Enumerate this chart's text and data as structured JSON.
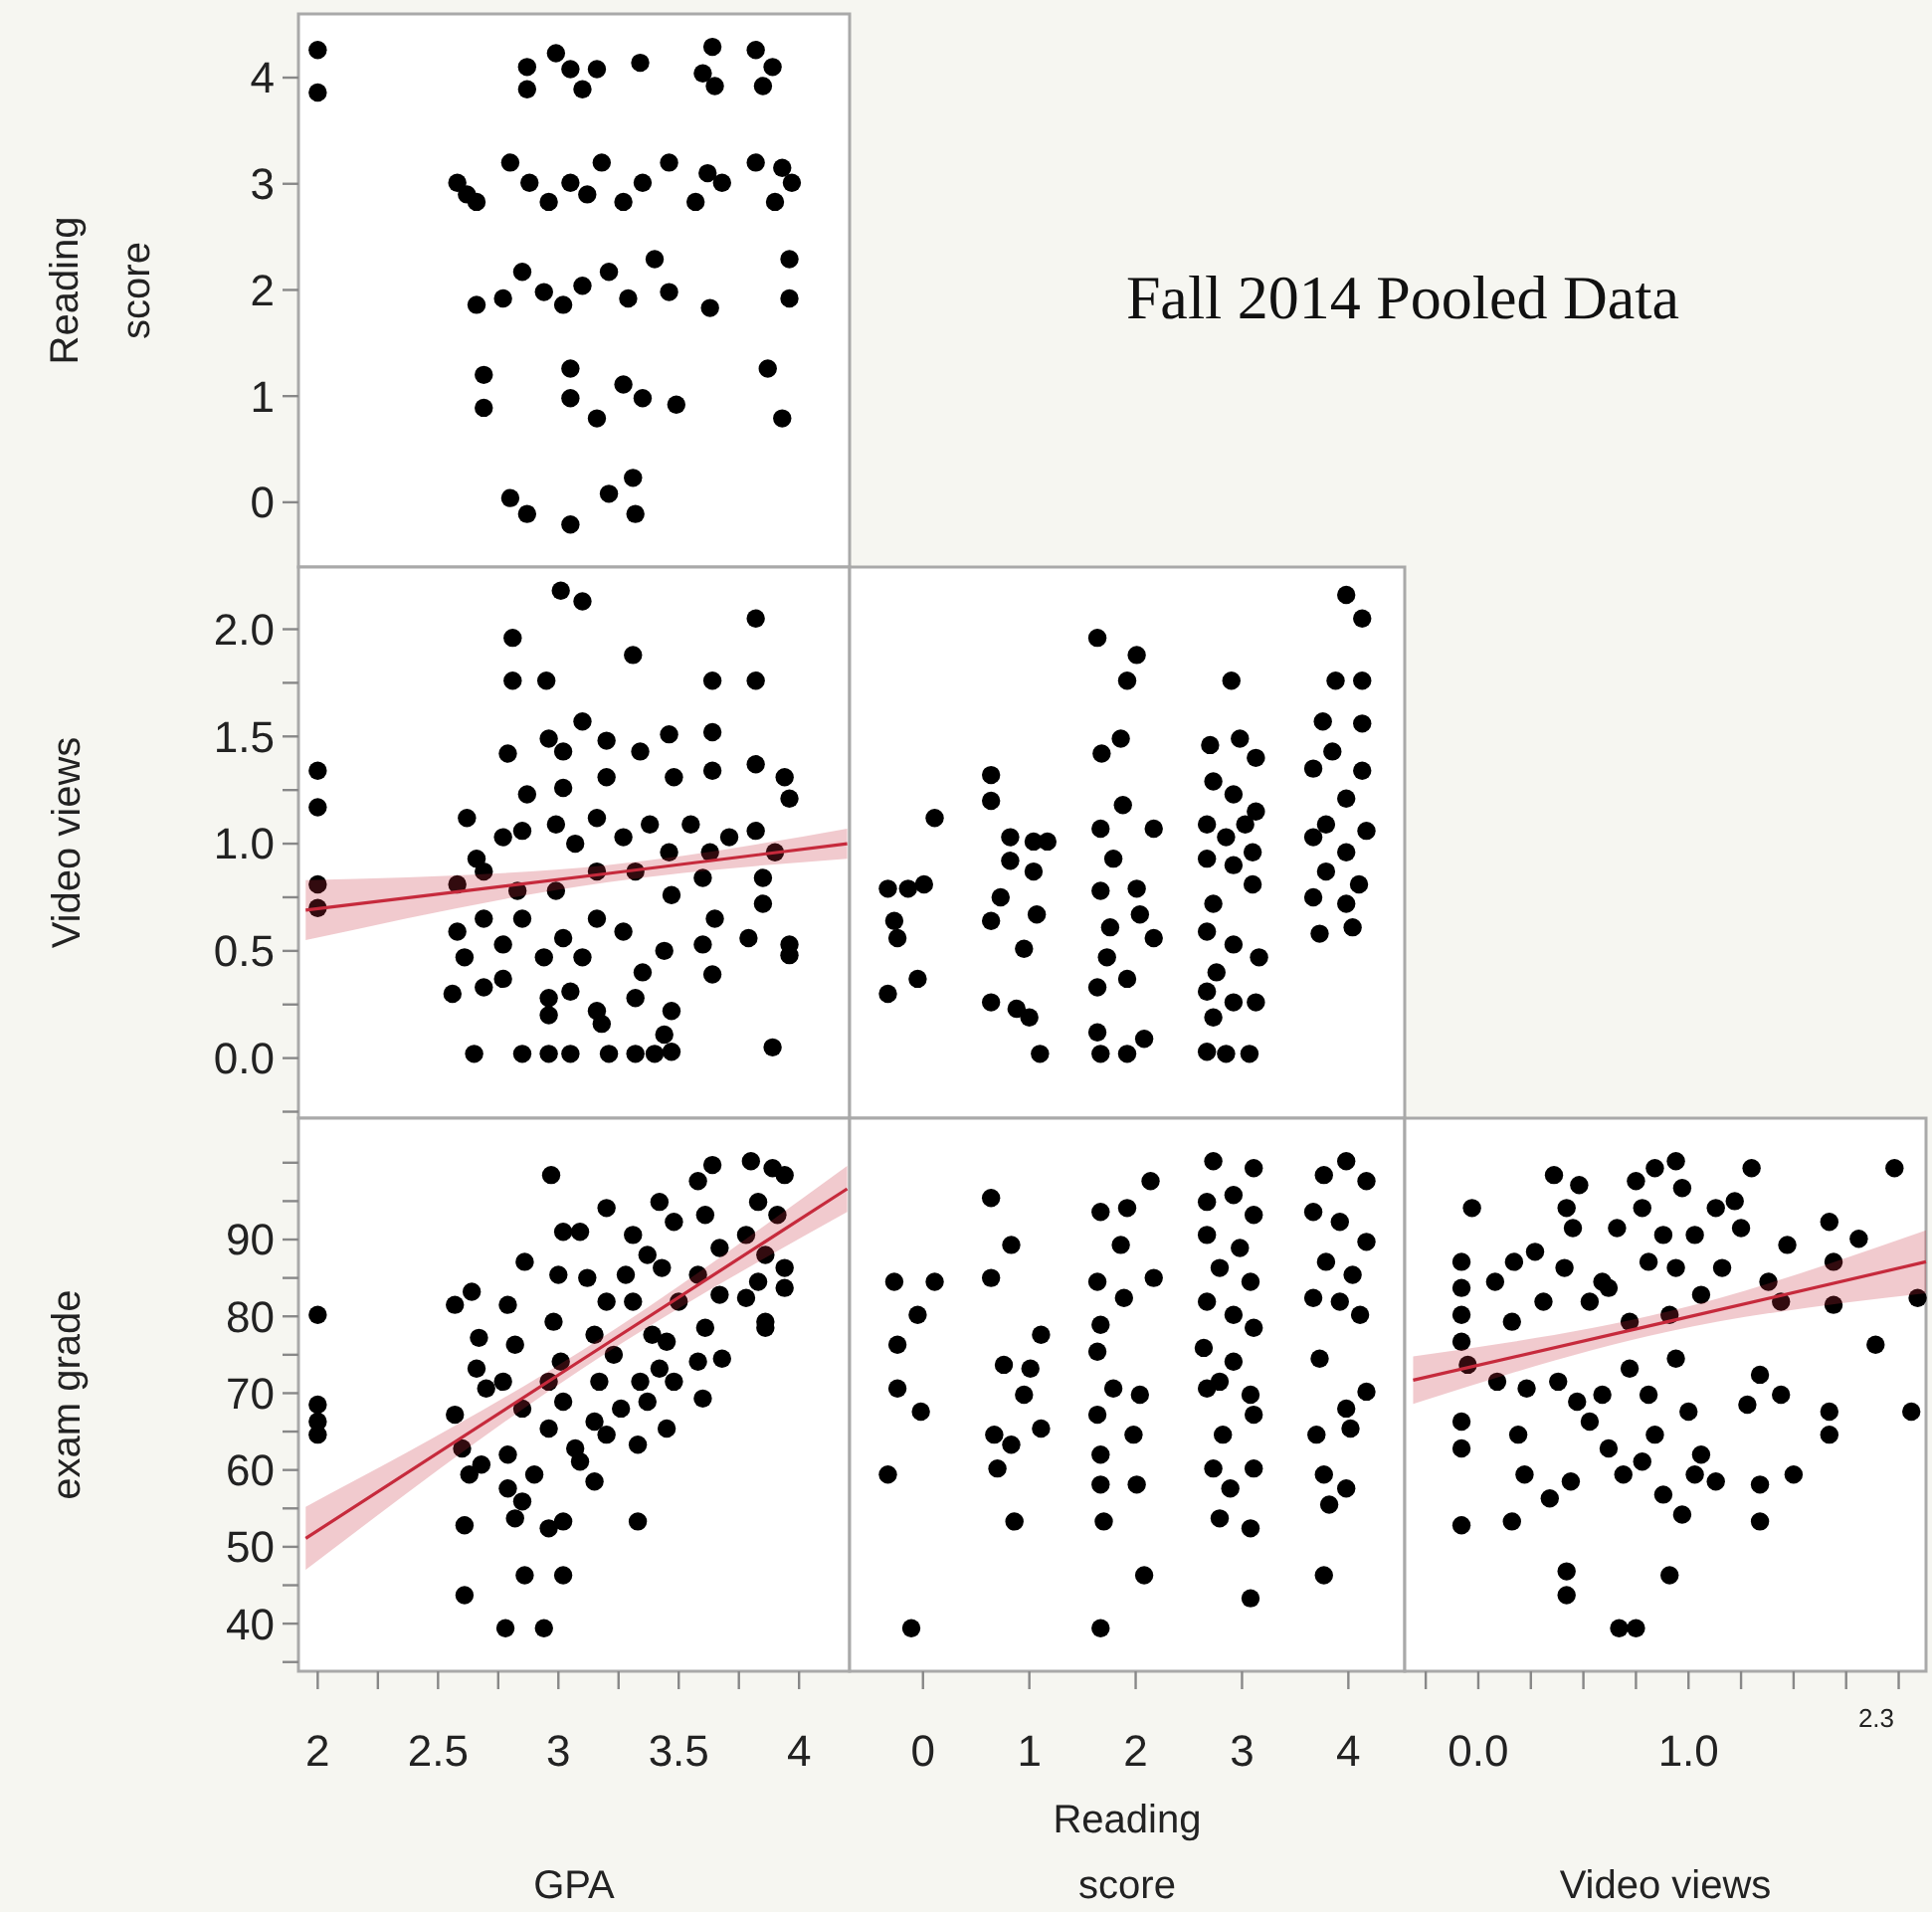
{
  "chart_data": [
    {
      "type": "scatter",
      "ylabel": "Reading score",
      "marker": "circle",
      "tick_labels": "y",
      "xlim": [
        1.92,
        4.21
      ],
      "ylim": [
        -0.61,
        4.6
      ],
      "yticks": [
        0,
        1,
        2,
        3,
        4
      ],
      "series": [
        {
          "color": "#000000",
          "x": [
            2.0,
            2.0,
            2.87,
            2.87,
            2.99,
            3.05,
            3.1,
            3.16,
            3.34,
            3.64,
            3.65,
            3.6,
            3.82,
            3.85,
            3.89,
            2.58,
            2.66,
            2.8,
            2.88,
            2.96,
            3.05,
            3.18,
            3.27,
            3.35,
            3.46,
            3.57,
            3.68,
            3.82,
            3.9,
            3.97,
            2.62,
            3.12,
            3.62,
            3.93,
            2.66,
            2.77,
            2.85,
            2.94,
            3.02,
            3.1,
            3.21,
            3.29,
            3.4,
            3.46,
            3.63,
            3.96,
            3.96,
            2.69,
            2.69,
            3.05,
            3.05,
            3.16,
            3.27,
            3.35,
            3.49,
            3.87,
            3.93,
            2.8,
            2.87,
            3.05,
            3.21,
            3.31,
            3.32
          ],
          "values": [
            4.26,
            3.86,
            4.1,
            3.89,
            4.23,
            4.08,
            3.89,
            4.08,
            4.14,
            4.29,
            3.92,
            4.04,
            4.26,
            3.92,
            4.1,
            3.01,
            2.83,
            3.2,
            3.01,
            2.83,
            3.01,
            3.2,
            2.83,
            3.01,
            3.2,
            2.83,
            3.01,
            3.2,
            2.83,
            3.01,
            2.9,
            2.9,
            3.1,
            3.15,
            1.86,
            1.92,
            2.17,
            1.98,
            1.86,
            2.04,
            2.17,
            1.92,
            2.29,
            1.98,
            1.83,
            2.29,
            1.92,
            1.2,
            0.89,
            1.26,
            0.98,
            0.79,
            1.11,
            0.98,
            0.92,
            1.26,
            0.79,
            0.04,
            -0.11,
            -0.21,
            0.08,
            0.23,
            -0.11
          ]
        }
      ]
    },
    {
      "type": "scatter",
      "ylabel": "Video views",
      "marker": "circle",
      "tick_labels": "y",
      "xlim": [
        1.92,
        4.21
      ],
      "ylim": [
        -0.28,
        2.29
      ],
      "yticks": [
        {
          "value": -0.25,
          "label": null
        },
        {
          "value": 0,
          "label": "0.0"
        },
        {
          "value": 0.25,
          "label": null
        },
        {
          "value": 0.5,
          "label": "0.5"
        },
        {
          "value": 0.75,
          "label": null
        },
        {
          "value": 1,
          "label": "1.0"
        },
        {
          "value": 1.25,
          "label": null
        },
        {
          "value": 1.5,
          "label": "1.5"
        },
        {
          "value": 1.75,
          "label": null
        },
        {
          "value": 2,
          "label": "2.0"
        }
      ],
      "series": [
        {
          "color": "#000000",
          "x": [
            2.0,
            2.0,
            2.0,
            2.0,
            3.01,
            3.1,
            2.81,
            2.81,
            2.95,
            3.31,
            3.82,
            3.64,
            3.82,
            2.79,
            2.96,
            3.1,
            3.02,
            3.2,
            3.34,
            3.46,
            3.64,
            3.64,
            3.48,
            3.2,
            3.02,
            2.87,
            3.82,
            3.94,
            2.62,
            2.66,
            2.58,
            2.77,
            2.85,
            2.99,
            3.07,
            3.16,
            3.27,
            3.38,
            3.46,
            3.55,
            3.63,
            3.71,
            3.82,
            3.9,
            3.96,
            3.85,
            3.6,
            3.32,
            3.16,
            2.99,
            2.83,
            2.69,
            3.47,
            2.58,
            2.61,
            2.69,
            2.77,
            2.85,
            2.94,
            3.02,
            3.1,
            3.16,
            3.27,
            3.35,
            3.44,
            3.6,
            3.65,
            3.85,
            3.96,
            3.79,
            3.64,
            3.96,
            2.56,
            2.69,
            2.77,
            2.96,
            2.96,
            3.05,
            3.16,
            3.18,
            3.32,
            3.47,
            3.44,
            2.65,
            2.85,
            2.96,
            3.05,
            3.21,
            3.32,
            3.4,
            3.47,
            3.89
          ],
          "values": [
            1.34,
            1.17,
            0.81,
            0.7,
            2.18,
            2.13,
            1.96,
            1.76,
            1.76,
            1.88,
            2.05,
            1.76,
            1.76,
            1.42,
            1.49,
            1.57,
            1.43,
            1.48,
            1.43,
            1.51,
            1.52,
            1.34,
            1.31,
            1.31,
            1.26,
            1.23,
            1.37,
            1.31,
            1.12,
            0.93,
            0.81,
            1.03,
            1.06,
            1.09,
            1.0,
            1.12,
            1.03,
            1.09,
            0.96,
            1.09,
            0.96,
            1.03,
            1.06,
            0.96,
            1.21,
            0.84,
            0.84,
            0.87,
            0.87,
            0.78,
            0.78,
            0.87,
            0.76,
            0.59,
            0.47,
            0.65,
            0.53,
            0.65,
            0.47,
            0.56,
            0.47,
            0.65,
            0.59,
            0.4,
            0.5,
            0.53,
            0.65,
            0.72,
            0.53,
            0.56,
            0.39,
            0.48,
            0.3,
            0.33,
            0.37,
            0.28,
            0.2,
            0.31,
            0.22,
            0.16,
            0.28,
            0.22,
            0.11,
            0.02,
            0.02,
            0.02,
            0.02,
            0.02,
            0.02,
            0.02,
            0.03,
            0.05
          ]
        },
        {
          "type": "line",
          "marker": "none",
          "color": "#c62a3c",
          "x": [
            1.95,
            3.2,
            4.2
          ],
          "values": [
            0.69,
            0.86,
            1.0
          ],
          "lower": [
            0.55,
            0.82,
            0.93
          ],
          "upper": [
            0.83,
            0.9,
            1.07
          ]
        }
      ]
    },
    {
      "type": "scatter",
      "marker": "circle",
      "tick_labels": false,
      "xlim": [
        -0.69,
        4.53
      ],
      "ylim": [
        -0.28,
        2.29
      ],
      "series": [
        {
          "color": "#000000",
          "x": [
            -0.33,
            -0.14,
            0.01,
            -0.27,
            -0.24,
            0.11,
            -0.05,
            -0.33,
            0.64,
            0.64,
            0.82,
            1.04,
            1.17,
            0.82,
            1.04,
            0.73,
            0.64,
            1.07,
            0.95,
            0.64,
            0.88,
            1.0,
            1.1,
            1.64,
            2.01,
            1.92,
            1.86,
            1.68,
            1.88,
            1.67,
            2.17,
            1.79,
            2.01,
            1.67,
            1.76,
            2.04,
            2.17,
            1.73,
            1.92,
            1.64,
            1.64,
            2.08,
            1.67,
            1.92,
            2.9,
            2.7,
            2.98,
            3.13,
            2.73,
            2.92,
            2.67,
            2.85,
            3.03,
            3.13,
            2.67,
            2.92,
            3.1,
            3.1,
            2.73,
            2.67,
            2.92,
            3.16,
            2.76,
            2.67,
            2.92,
            3.13,
            2.73,
            2.67,
            2.85,
            3.07,
            3.98,
            4.13,
            3.88,
            4.13,
            3.76,
            4.13,
            3.85,
            3.67,
            4.13,
            3.98,
            3.79,
            4.17,
            3.67,
            3.98,
            3.79,
            4.1,
            3.67,
            3.98,
            3.73,
            4.04
          ],
          "values": [
            0.79,
            0.79,
            0.81,
            0.64,
            0.56,
            1.12,
            0.37,
            0.3,
            1.32,
            1.2,
            1.03,
            1.01,
            1.01,
            0.92,
            0.87,
            0.75,
            0.64,
            0.67,
            0.51,
            0.26,
            0.23,
            0.19,
            0.02,
            1.96,
            1.88,
            1.76,
            1.49,
            1.42,
            1.18,
            1.07,
            1.07,
            0.93,
            0.79,
            0.78,
            0.61,
            0.67,
            0.56,
            0.47,
            0.37,
            0.33,
            0.12,
            0.09,
            0.02,
            0.02,
            1.76,
            1.46,
            1.49,
            1.4,
            1.29,
            1.23,
            1.09,
            1.03,
            1.09,
            1.15,
            0.93,
            0.9,
            0.96,
            0.81,
            0.72,
            0.59,
            0.53,
            0.47,
            0.4,
            0.31,
            0.26,
            0.26,
            0.19,
            0.03,
            0.02,
            0.02,
            2.16,
            2.05,
            1.76,
            1.76,
            1.57,
            1.56,
            1.43,
            1.35,
            1.34,
            1.21,
            1.09,
            1.06,
            1.03,
            0.96,
            0.87,
            0.81,
            0.75,
            0.72,
            0.58,
            0.61
          ]
        }
      ]
    },
    {
      "type": "scatter",
      "xlabel": "GPA",
      "ylabel": "exam grade",
      "marker": "circle",
      "xlim": [
        1.92,
        4.21
      ],
      "xticks": [
        2,
        {
          "value": 2.25,
          "label": null
        },
        2.5,
        {
          "value": 2.75,
          "label": null
        },
        3,
        {
          "value": 3.25,
          "label": null
        },
        3.5,
        {
          "value": 3.75,
          "label": null
        },
        4
      ],
      "ylim": [
        33.8,
        105.8
      ],
      "yticks": [
        {
          "value": 35,
          "label": null
        },
        40,
        {
          "value": 45,
          "label": null
        },
        50,
        {
          "value": 55,
          "label": null
        },
        60,
        {
          "value": 65,
          "label": null
        },
        70,
        {
          "value": 75,
          "label": null
        },
        80,
        {
          "value": 85,
          "label": null
        },
        90,
        {
          "value": 95,
          "label": null
        },
        {
          "value": 100,
          "label": null
        }
      ],
      "series": [
        {
          "color": "#000000",
          "x": [
            2.0,
            2.0,
            2.0,
            2.0,
            2.57,
            2.64,
            2.67,
            2.66,
            2.7,
            2.57,
            2.6,
            2.63,
            2.68,
            2.61,
            2.61,
            2.78,
            2.94,
            2.86,
            3.02,
            2.79,
            2.86,
            2.82,
            2.77,
            2.85,
            2.79,
            2.79,
            2.85,
            2.82,
            2.96,
            3.02,
            2.9,
            2.97,
            3.02,
            3.09,
            3.0,
            2.98,
            3.01,
            2.96,
            3.02,
            2.96,
            3.07,
            3.15,
            3.09,
            3.2,
            3.12,
            3.2,
            3.15,
            3.23,
            3.17,
            3.26,
            3.15,
            3.2,
            3.31,
            3.28,
            3.37,
            3.31,
            3.39,
            3.34,
            3.37,
            3.33,
            3.45,
            3.33,
            3.42,
            3.48,
            3.43,
            3.5,
            3.45,
            3.42,
            3.48,
            3.58,
            3.64,
            3.61,
            3.67,
            3.58,
            3.67,
            3.61,
            3.58,
            3.68,
            3.6,
            3.8,
            3.89,
            3.94,
            3.83,
            3.91,
            3.78,
            3.86,
            3.94,
            3.83,
            3.94,
            3.78,
            3.86,
            3.86
          ],
          "values": [
            80.2,
            68.5,
            66.3,
            64.6,
            81.5,
            83.2,
            77.2,
            73.2,
            70.6,
            67.2,
            62.8,
            59.4,
            60.7,
            52.8,
            43.7,
            39.4,
            39.4,
            46.3,
            46.3,
            81.5,
            87.1,
            76.3,
            71.5,
            68,
            62,
            57.6,
            55.9,
            53.7,
            52.4,
            53.3,
            59.4,
            98.4,
            91,
            91,
            85.4,
            79.3,
            74.1,
            71.5,
            68.9,
            65.4,
            62.8,
            58.5,
            61.1,
            94.1,
            85,
            81.9,
            77.6,
            75,
            71.5,
            68,
            66.3,
            64.6,
            90.6,
            85.4,
            88,
            81.9,
            77.6,
            71.5,
            68.9,
            63.3,
            65.4,
            53.3,
            94.9,
            92.3,
            86.3,
            81.9,
            76.7,
            73.2,
            71.5,
            97.6,
            99.7,
            93.2,
            88.9,
            85.4,
            82.8,
            78.5,
            74.1,
            74.5,
            69.3,
            100.2,
            99.3,
            98.4,
            94.9,
            93.2,
            90.6,
            88,
            86.3,
            84.5,
            83.7,
            82.4,
            79.3,
            78.5
          ]
        },
        {
          "type": "line",
          "marker": "none",
          "color": "#c62a3c",
          "x": [
            1.95,
            3.1,
            4.2
          ],
          "values": [
            51.1,
            74.4,
            96.6
          ],
          "lower": [
            47,
            73.2,
            93.6
          ],
          "upper": [
            55.2,
            75.6,
            99.6
          ]
        }
      ]
    },
    {
      "type": "scatter",
      "xlabel": "Reading score",
      "marker": "circle",
      "tick_labels": "x",
      "xlim": [
        -0.69,
        4.53
      ],
      "xticks": [
        0,
        1,
        2,
        3,
        4
      ],
      "ylim": [
        33.8,
        105.8
      ],
      "series": [
        {
          "color": "#000000",
          "x": [
            -0.27,
            0.11,
            -0.05,
            -0.24,
            -0.24,
            -0.02,
            -0.33,
            -0.11,
            0.64,
            0.83,
            0.64,
            1.11,
            0.76,
            1.01,
            0.95,
            1.11,
            0.67,
            0.83,
            0.7,
            0.86,
            2.14,
            1.67,
            1.92,
            1.86,
            2.17,
            1.64,
            1.89,
            1.67,
            1.64,
            1.79,
            2.04,
            1.64,
            1.98,
            1.67,
            2.01,
            1.67,
            1.7,
            2.08,
            1.67,
            2.73,
            3.11,
            2.67,
            2.92,
            3.11,
            2.67,
            2.98,
            2.79,
            3.08,
            2.67,
            2.92,
            3.11,
            2.64,
            2.92,
            2.79,
            3.08,
            2.67,
            3.11,
            2.82,
            2.73,
            3.11,
            2.89,
            2.79,
            3.08,
            3.08,
            3.98,
            3.77,
            4.17,
            3.67,
            3.92,
            4.17,
            3.79,
            4.04,
            3.67,
            4.11,
            3.92,
            3.73,
            4.17,
            3.98,
            4.02,
            3.7,
            3.77,
            3.98,
            3.82,
            3.77
          ],
          "values": [
            84.5,
            84.5,
            80.2,
            76.3,
            70.6,
            67.6,
            59.4,
            39.4,
            95.4,
            89.3,
            85,
            77.6,
            73.7,
            73.2,
            69.8,
            65.4,
            64.6,
            63.3,
            60.2,
            53.3,
            97.6,
            93.6,
            94.1,
            89.3,
            85,
            84.5,
            82.4,
            78.9,
            75.4,
            70.6,
            69.8,
            67.2,
            64.6,
            62,
            58.1,
            58.1,
            53.3,
            46.3,
            39.4,
            100.2,
            99.3,
            94.9,
            95.8,
            93.2,
            90.6,
            88.9,
            86.3,
            84.5,
            81.9,
            80.2,
            78.5,
            75.9,
            74.1,
            71.5,
            69.8,
            70.6,
            67.2,
            64.6,
            60.2,
            60.2,
            57.6,
            53.7,
            52.4,
            43.3,
            100.2,
            98.4,
            97.6,
            93.6,
            92.3,
            89.7,
            87.1,
            85.4,
            82.4,
            80.2,
            81.9,
            74.5,
            70.2,
            68,
            65.4,
            64.6,
            59.4,
            57.6,
            55.5,
            46.3
          ]
        }
      ]
    },
    {
      "type": "scatter",
      "xlabel": "Video views",
      "marker": "circle",
      "tick_labels": "x",
      "annotations": [
        "2.3"
      ],
      "xlim": [
        -0.35,
        2.13
      ],
      "xticks": [
        {
          "value": -0.25,
          "label": null
        },
        {
          "value": 0,
          "label": "0.0"
        },
        {
          "value": 0.25,
          "label": null
        },
        {
          "value": 0.5,
          "label": null
        },
        {
          "value": 0.75,
          "label": null
        },
        {
          "value": 1,
          "label": "1.0"
        },
        {
          "value": 1.25,
          "label": null
        },
        {
          "value": 1.5,
          "label": null
        },
        {
          "value": 1.75,
          "label": null
        },
        {
          "value": 2,
          "label": null
        }
      ],
      "ylim": [
        33.8,
        105.8
      ],
      "series": [
        {
          "color": "#000000",
          "x": [
            -0.03,
            -0.08,
            -0.08,
            -0.08,
            -0.08,
            -0.05,
            -0.08,
            -0.08,
            -0.08,
            0.16,
            0.08,
            0.17,
            0.27,
            0.36,
            0.48,
            0.42,
            0.45,
            0.41,
            0.31,
            0.16,
            0.09,
            0.23,
            0.19,
            0.22,
            0.34,
            0.44,
            0.42,
            0.42,
            0.67,
            0.75,
            0.53,
            0.59,
            0.66,
            0.75,
            0.84,
            0.94,
            0.97,
            0.78,
            0.88,
            0.81,
            0.94,
            1.03,
            1.13,
            1.22,
            1.25,
            1.16,
            1.06,
            0.91,
            0.72,
            0.62,
            0.38,
            0.47,
            0.53,
            0.62,
            0.69,
            0.72,
            0.81,
            0.84,
            0.78,
            0.94,
            1.0,
            0.59,
            0.88,
            0.97,
            0.91,
            1.03,
            1.13,
            1.06,
            1.3,
            1.47,
            1.38,
            1.44,
            1.34,
            1.44,
            1.28,
            1.34,
            1.5,
            1.34,
            1.67,
            1.81,
            1.69,
            1.69,
            1.89,
            1.67,
            1.67,
            1.98,
            2.09,
            2.06
          ],
          "values": [
            94.1,
            87.1,
            83.7,
            80.2,
            76.7,
            73.7,
            66.3,
            62.8,
            52.8,
            53.3,
            84.5,
            87.1,
            88.4,
            98.4,
            97.1,
            94.1,
            91.5,
            86.3,
            81.9,
            79.3,
            71.5,
            70.6,
            64.6,
            59.4,
            56.3,
            58.5,
            46.8,
            43.7,
            39.4,
            39.4,
            81.9,
            84.5,
            91.5,
            97.6,
            99.3,
            100.2,
            96.7,
            94.1,
            90.6,
            87.1,
            86.3,
            90.6,
            94.1,
            95,
            91.5,
            86.3,
            82.8,
            80.2,
            79.3,
            83.7,
            71.5,
            68.9,
            66.3,
            62.8,
            59.4,
            73.2,
            69.8,
            64.6,
            61.1,
            74.5,
            67.6,
            69.8,
            56.8,
            54.2,
            46.3,
            59.4,
            58.5,
            62,
            99.3,
            89.3,
            84.5,
            81.9,
            72.4,
            69.8,
            68.5,
            58.1,
            59.4,
            53.3,
            92.3,
            90.1,
            87.1,
            81.5,
            76.3,
            67.6,
            64.6,
            99.3,
            82.4,
            67.6
          ]
        },
        {
          "type": "line",
          "marker": "none",
          "color": "#c62a3c",
          "x": [
            -0.31,
            0.9,
            2.13
          ],
          "values": [
            71.7,
            79.3,
            87.1
          ],
          "lower": [
            68.6,
            78,
            83
          ],
          "upper": [
            74.8,
            80.6,
            91.2
          ]
        }
      ]
    },
    {
      "type": "other",
      "title": "Fall 2014 Pooled Data"
    }
  ]
}
